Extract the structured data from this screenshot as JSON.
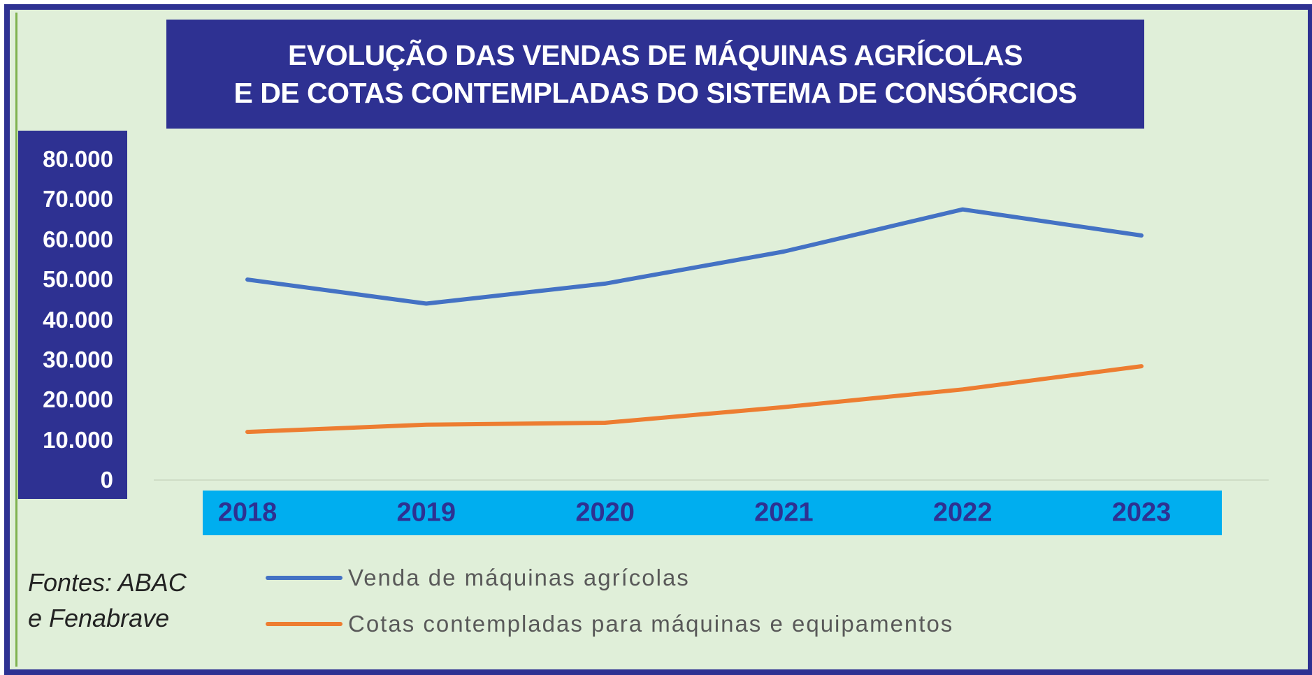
{
  "chart_data": {
    "type": "line",
    "title": [
      "EVOLUÇÃO DAS VENDAS DE MÁQUINAS AGRÍCOLAS",
      "E DE COTAS CONTEMPLADAS DO SISTEMA DE CONSÓRCIOS"
    ],
    "x": [
      "2018",
      "2019",
      "2020",
      "2021",
      "2022",
      "2023"
    ],
    "y_ticks": [
      "80.000",
      "70.000",
      "60.000",
      "50.000",
      "40.000",
      "30.000",
      "20.000",
      "10.000",
      "0"
    ],
    "ylim": [
      0,
      80000
    ],
    "series": [
      {
        "name": "Venda de máquinas agrícolas",
        "color": "#4472c4",
        "values": [
          50000,
          44000,
          49000,
          57000,
          67500,
          61000
        ]
      },
      {
        "name": "Cotas contempladas para máquinas e equipamentos",
        "color": "#ed7d31",
        "values": [
          12000,
          13800,
          14300,
          18200,
          22600,
          28400
        ]
      }
    ],
    "legend_position": "bottom",
    "grid": false
  },
  "source_lines": [
    "Fontes: ABAC",
    "e Fenabrave"
  ],
  "colors": {
    "frame": "#2e3192",
    "background": "#e0efd9",
    "x_axis_band": "#00aeef",
    "axis_text_x": "#2e3192"
  }
}
